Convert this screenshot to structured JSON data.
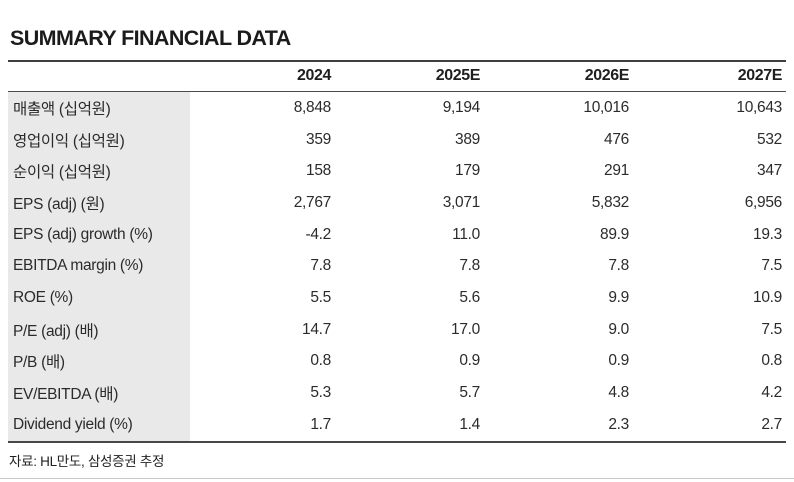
{
  "title": "SUMMARY FINANCIAL DATA",
  "table": {
    "years": [
      "2024",
      "2025E",
      "2026E",
      "2027E"
    ],
    "rows": [
      {
        "label": "매출액 (십억원)",
        "values": [
          "8,848",
          "9,194",
          "10,016",
          "10,643"
        ]
      },
      {
        "label": "영업이익 (십억원)",
        "values": [
          "359",
          "389",
          "476",
          "532"
        ]
      },
      {
        "label": "순이익 (십억원)",
        "values": [
          "158",
          "179",
          "291",
          "347"
        ]
      },
      {
        "label": "EPS (adj) (원)",
        "values": [
          "2,767",
          "3,071",
          "5,832",
          "6,956"
        ]
      },
      {
        "label": "EPS (adj) growth (%)",
        "values": [
          "-4.2",
          "11.0",
          "89.9",
          "19.3"
        ]
      },
      {
        "label": "EBITDA margin (%)",
        "values": [
          "7.8",
          "7.8",
          "7.8",
          "7.5"
        ]
      },
      {
        "label": "ROE (%)",
        "values": [
          "5.5",
          "5.6",
          "9.9",
          "10.9"
        ]
      },
      {
        "label": "P/E (adj) (배)",
        "values": [
          "14.7",
          "17.0",
          "9.0",
          "7.5"
        ]
      },
      {
        "label": "P/B (배)",
        "values": [
          "0.8",
          "0.9",
          "0.9",
          "0.8"
        ]
      },
      {
        "label": "EV/EBITDA (배)",
        "values": [
          "5.3",
          "5.7",
          "4.8",
          "4.2"
        ]
      },
      {
        "label": "Dividend yield (%)",
        "values": [
          "1.7",
          "1.4",
          "2.3",
          "2.7"
        ]
      }
    ]
  },
  "source": "자료: HL만도, 삼성증권 추정",
  "colors": {
    "label_column_bg": "#e9e9e9",
    "rule_dark": "#3f3f3f",
    "rule_bottom_page": "#c8c8c8",
    "text": "#2b2b2b"
  }
}
